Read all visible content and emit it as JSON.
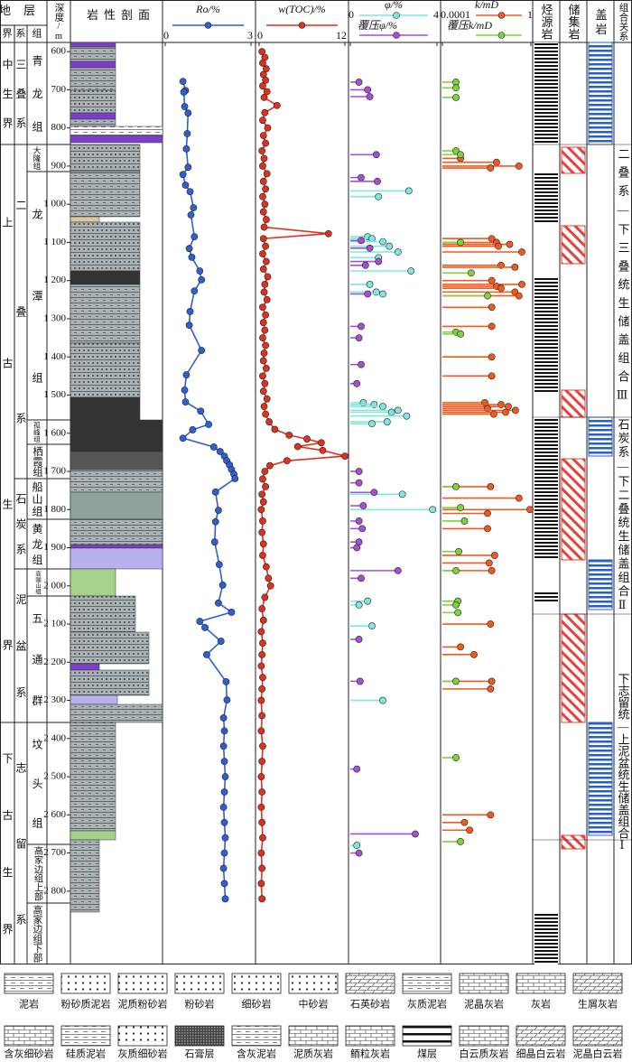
{
  "header": {
    "stratum": "地层",
    "era": "界",
    "system": "系",
    "formation": "组",
    "depth": "深度/m",
    "lithology": "岩性剖面",
    "source": "烃源岩",
    "reservoir": "储集岩",
    "cap": "盖岩",
    "combination": "组合关系"
  },
  "strata": {
    "era": [
      "中生界",
      "上古生界",
      "下古生界"
    ],
    "system": [
      "三叠系",
      "二叠系",
      "石炭系",
      "泥盆系",
      "志留系"
    ],
    "formation": [
      "青龙组",
      "大隆组",
      "龙潭组",
      "孤峰组",
      "栖霞组",
      "船山组",
      "黄龙组",
      "高骊山组",
      "五通群",
      "坟头组",
      "高家边组上部",
      "高家边组下部"
    ]
  },
  "combination": [
    "二叠系—下三叠统生储盖组合Ⅲ",
    "石炭系—下二叠统生储盖组合Ⅱ",
    "下志留统—上泥盆统生储盖组合Ⅰ"
  ],
  "legend": [
    [
      "泥岩",
      "粉砂质泥岩",
      "泥质粉砂岩",
      "粉砂岩",
      "细砂岩",
      "中砂岩",
      "石英砂岩",
      "灰质泥岩",
      "泥晶灰岩",
      "灰岩",
      "生屑灰岩"
    ],
    [
      "含灰细砂岩",
      "硅质泥岩",
      "灰质细砂岩",
      "石膏层",
      "含灰泥岩",
      "泥质灰岩",
      "鲕粒灰岩",
      "煤层",
      "白云质灰岩",
      "细晶白云岩",
      "泥晶白云岩"
    ]
  ],
  "chart_data": [
    {
      "type": "line",
      "title": "Ro/%",
      "color": "#2f5fd0",
      "xlim": [
        576,
        2992
      ],
      "xticks": [
        600,
        700,
        800,
        900,
        {
          "value": 1000,
          "label": "1 000"
        },
        {
          "value": 1100,
          "label": "1 100"
        },
        {
          "value": 1200,
          "label": "1 200"
        },
        {
          "value": 1300,
          "label": "1 300"
        },
        {
          "value": 1400,
          "label": "1 400"
        },
        {
          "value": 1500,
          "label": "1 500"
        },
        {
          "value": 1600,
          "label": "1 600"
        },
        {
          "value": 1700,
          "label": "1 700"
        },
        {
          "value": 1800,
          "label": "1 800"
        },
        {
          "value": 1900,
          "label": "1 900"
        },
        {
          "value": 2000,
          "label": "2 000"
        },
        {
          "value": 2100,
          "label": "2 100"
        },
        {
          "value": 2200,
          "label": "2 200"
        },
        {
          "value": 2300,
          "label": "2 300"
        },
        {
          "value": 2400,
          "label": "2 400"
        },
        {
          "value": 2500,
          "label": "2 500"
        },
        {
          "value": 2600,
          "label": "2 600"
        },
        {
          "value": 2700,
          "label": "2 700"
        },
        {
          "value": 2800,
          "label": "2 800"
        }
      ],
      "ylim": [
        0,
        3
      ],
      "yticks": [
        0,
        3
      ],
      "x": [
        678,
        702,
        706,
        744,
        761,
        815,
        855,
        903,
        922,
        950,
        967,
        1009,
        1028,
        1085,
        1116,
        1139,
        1175,
        1198,
        1227,
        1281,
        1317,
        1383,
        1447,
        1487,
        1518,
        1542,
        1577,
        1591,
        1613,
        1636,
        1648,
        1660,
        1672,
        1683,
        1695,
        1707,
        1719,
        1754,
        1802,
        1832,
        1885,
        1944,
        1998,
        2045,
        2069,
        2093,
        2109,
        2145,
        2180,
        2251,
        2299,
        2346,
        2380,
        2420,
        2460,
        2500,
        2540,
        2580,
        2620,
        2660,
        2700,
        2740,
        2780,
        2820
      ],
      "values": [
        0.62,
        0.71,
        0.65,
        0.68,
        0.8,
        0.77,
        0.74,
        0.8,
        0.62,
        0.71,
        0.87,
        0.99,
        0.9,
        1.02,
        0.84,
        0.93,
        1.21,
        1.27,
        1.02,
        0.87,
        0.84,
        1.27,
        0.74,
        0.68,
        0.71,
        1.24,
        1.52,
        0.96,
        0.62,
        1.7,
        1.92,
        2.07,
        2.15,
        2.25,
        2.32,
        2.4,
        2.44,
        1.76,
        1.86,
        1.76,
        1.73,
        1.89,
        2.01,
        1.86,
        2.32,
        1.21,
        1.39,
        1.95,
        1.45,
        2.13,
        2.16,
        2.04,
        2.07,
        2.04,
        2.07,
        2.1,
        2.07,
        2.04,
        2.07,
        2.1,
        2.07,
        2.04,
        2.07,
        2.1
      ]
    },
    {
      "type": "line",
      "title": "w(TOC)/%",
      "color": "#e0301e",
      "xlim": [
        576,
        2992
      ],
      "ylim": [
        0,
        12
      ],
      "yticks": [
        0,
        12
      ],
      "x": [
        600,
        615,
        630,
        645,
        660,
        675,
        690,
        705,
        720,
        741,
        760,
        780,
        800,
        820,
        840,
        860,
        880,
        900,
        920,
        940,
        960,
        980,
        1000,
        1020,
        1040,
        1060,
        1077,
        1090,
        1110,
        1130,
        1150,
        1170,
        1190,
        1210,
        1230,
        1250,
        1270,
        1290,
        1310,
        1330,
        1350,
        1370,
        1390,
        1410,
        1430,
        1450,
        1470,
        1490,
        1510,
        1530,
        1550,
        1570,
        1590,
        1605,
        1615,
        1625,
        1635,
        1645,
        1660,
        1672,
        1685,
        1700,
        1720,
        1740,
        1760,
        1780,
        1800,
        1830,
        1860,
        1890,
        1920,
        1950,
        1980,
        2000,
        2030,
        2060,
        2090,
        2120,
        2150,
        2180,
        2210,
        2240,
        2270,
        2300,
        2340,
        2380,
        2420,
        2460,
        2500,
        2540,
        2580,
        2620,
        2660,
        2700,
        2740,
        2780,
        2820
      ],
      "values": [
        0.4,
        0.8,
        0.5,
        1.0,
        0.6,
        0.9,
        0.5,
        1.1,
        0.7,
        2.5,
        0.8,
        0.5,
        1.2,
        0.6,
        0.9,
        0.4,
        0.7,
        0.5,
        1.1,
        0.6,
        0.9,
        0.5,
        0.8,
        0.6,
        1.0,
        0.7,
        9.7,
        0.6,
        0.9,
        0.5,
        1.0,
        0.6,
        1.2,
        0.8,
        0.7,
        1.1,
        0.5,
        0.9,
        0.6,
        0.8,
        0.5,
        0.9,
        0.7,
        0.6,
        1.0,
        0.5,
        0.8,
        0.6,
        1.1,
        0.7,
        0.9,
        1.4,
        2.2,
        4.2,
        6.7,
        8.7,
        5.4,
        8.9,
        12.0,
        3.9,
        1.5,
        0.8,
        0.5,
        0.9,
        0.4,
        0.6,
        0.3,
        0.5,
        0.4,
        0.6,
        0.5,
        1.0,
        1.3,
        1.6,
        0.8,
        0.4,
        0.6,
        0.3,
        0.5,
        0.4,
        0.3,
        0.5,
        0.4,
        0.3,
        0.4,
        0.3,
        0.5,
        0.4,
        0.3,
        0.4,
        0.3,
        0.4,
        0.5,
        0.3,
        0.4,
        0.3,
        0.4
      ]
    },
    {
      "type": "lollipop",
      "xlim": [
        576,
        2992
      ],
      "ylim": [
        0,
        4
      ],
      "yticks": [
        0,
        4
      ],
      "series": [
        {
          "name": "φ/%",
          "color": "#7fe6e0",
          "x": [
            965,
            980,
            1085,
            1090,
            1098,
            1110,
            1125,
            1140,
            1175,
            1210,
            1230,
            1235,
            1520,
            1525,
            1530,
            1540,
            1545,
            1555,
            1570,
            1575,
            1760,
            1800,
            2040,
            2050,
            2105,
            2300,
            2680
          ],
          "values": [
            2.7,
            1.3,
            0.8,
            1.0,
            1.5,
            1.8,
            2.2,
            1.3,
            2.8,
            0.9,
            1.2,
            1.5,
            0.6,
            1.1,
            1.5,
            2.2,
            1.9,
            2.6,
            1.7,
            1.0,
            2.4,
            3.8,
            0.8,
            0.4,
            1.0,
            1.5,
            0.3
          ]
        },
        {
          "name": "覆压φ/%",
          "color": "#a64fd3",
          "x": [
            680,
            700,
            718,
            870,
            930,
            940,
            1095,
            1115,
            1150,
            1160,
            1235,
            1320,
            1350,
            1420,
            1470,
            1700,
            1730,
            1755,
            1790,
            1830,
            1850,
            1885,
            1900,
            1960,
            1980,
            2140,
            2250,
            2480,
            2650,
            2700
          ],
          "values": [
            0.4,
            0.8,
            0.9,
            1.2,
            0.5,
            1.25,
            0.5,
            0.9,
            1.3,
            0.7,
            0.8,
            0.5,
            0.4,
            0.5,
            0.3,
            0.4,
            0.4,
            1.1,
            0.6,
            0.4,
            0.55,
            0.4,
            0.3,
            2.2,
            0.5,
            0.4,
            0.45,
            0.3,
            3.0,
            0.4
          ]
        }
      ]
    },
    {
      "type": "lollipop",
      "log": true,
      "xlim": [
        576,
        2992
      ],
      "ylim": [
        0.0001,
        1
      ],
      "yticks": [
        0.0001,
        1
      ],
      "series": [
        {
          "name": "k/mD",
          "color": "#f05a1e",
          "x": [
            880,
            890,
            900,
            905,
            1090,
            1100,
            1105,
            1110,
            1125,
            1160,
            1165,
            1200,
            1210,
            1215,
            1220,
            1230,
            1240,
            1270,
            1320,
            1400,
            1450,
            1520,
            1525,
            1530,
            1535,
            1540,
            1545,
            1550,
            1740,
            1770,
            1800,
            1810,
            1850,
            1920,
            1940,
            1960,
            2100,
            2160,
            2180,
            2250,
            2270,
            2600,
            2620,
            2640
          ],
          "values": [
            0.00066,
            0.028,
            0.29,
            0.015,
            0.017,
            0.028,
            0.11,
            0.034,
            0.39,
            0.045,
            0.19,
            0.017,
            0.39,
            0.028,
            0.045,
            0.19,
            0.29,
            0.017,
            0.017,
            0.017,
            0.017,
            0.0083,
            0.045,
            0.095,
            0.011,
            0.2,
            0.072,
            0.021,
            0.015,
            0.29,
            0.91,
            0.011,
            0.011,
            0.023,
            0.013,
            0.017,
            0.015,
            0.00066,
            0.0027,
            0.017,
            0.015,
            0.015,
            0.001,
            0.0017
          ]
        },
        {
          "name": "覆压k/mD",
          "color": "#7ed23a",
          "x": [
            680,
            695,
            720,
            860,
            870,
            1100,
            1180,
            1240,
            1335,
            1340,
            1740,
            1795,
            1830,
            1910,
            1960,
            2040,
            2050,
            2070,
            2250,
            2450,
            2670
          ],
          "values": [
            0.00041,
            0.00041,
            0.00041,
            0.00041,
            0.00066,
            0.00066,
            0.002,
            0.011,
            0.00041,
            0.00066,
            0.00041,
            0.00066,
            0.001,
            0.00055,
            0.00041,
            0.0005,
            0.00041,
            0.0005,
            0.00041,
            0.00041,
            0.00066
          ]
        }
      ]
    }
  ]
}
